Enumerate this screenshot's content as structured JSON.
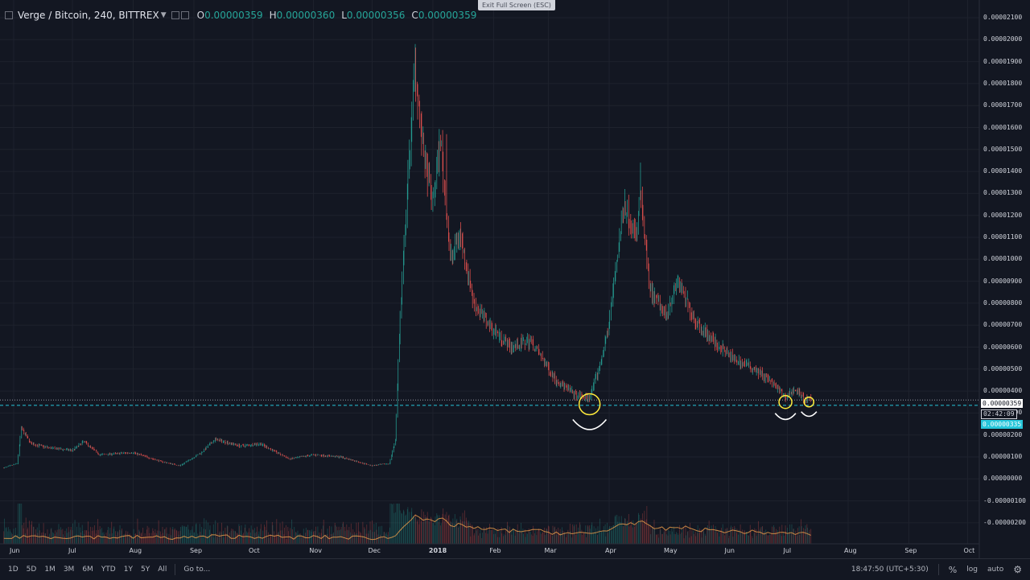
{
  "header": {
    "symbol": "Verge / Bitcoin, 240, BITTREX",
    "open_key": "O",
    "open": "0.00000359",
    "high_key": "H",
    "high": "0.00000360",
    "low_key": "L",
    "low": "0.00000356",
    "close_key": "C",
    "close": "0.00000359"
  },
  "exit_fullscreen_label": "Exit Full Screen (ESC)",
  "price_labels": {
    "last": "0.00000359",
    "countdown": "02:42:09",
    "crosshair": "0.00000335"
  },
  "bottom_toolbar": {
    "ranges": [
      "1D",
      "5D",
      "1M",
      "3M",
      "6M",
      "YTD",
      "1Y",
      "5Y",
      "All"
    ],
    "goto": "Go to...",
    "time": "18:47:50 (UTC+5:30)",
    "percent": "%",
    "log": "log",
    "auto": "auto"
  },
  "colors": {
    "background": "#131722",
    "up": "#26a69a",
    "down": "#ef5350",
    "crosshair": "#26c6da",
    "annotation": "#ffeb3b"
  },
  "chart_data": {
    "type": "candlestick",
    "title": "Verge / Bitcoin, 240, BITTREX",
    "x_tick_labels": [
      "Jun",
      "Jul",
      "Aug",
      "Sep",
      "Oct",
      "Nov",
      "Dec",
      "2018",
      "Feb",
      "Mar",
      "Apr",
      "May",
      "Jun",
      "Jul",
      "Aug",
      "Sep",
      "Oct"
    ],
    "y_tick_labels": [
      "0.00002100",
      "0.00002000",
      "0.00001900",
      "0.00001800",
      "0.00001700",
      "0.00001600",
      "0.00001500",
      "0.00001400",
      "0.00001300",
      "0.00001200",
      "0.00001100",
      "0.00001000",
      "0.00000900",
      "0.00000800",
      "0.00000700",
      "0.00000600",
      "0.00000500",
      "0.00000400",
      "0.00000300",
      "0.00000200",
      "0.00000100",
      "0.00000000",
      "-0.00000100",
      "-0.00000200"
    ],
    "ylim": [
      -2.2e-06,
      2.13e-05
    ],
    "grid": true,
    "price_path": [
      [
        "2017-05-27",
        5e-07
      ],
      [
        "2017-06-03",
        7e-07
      ],
      [
        "2017-06-05",
        2.3e-06
      ],
      [
        "2017-06-10",
        1.6e-06
      ],
      [
        "2017-06-20",
        1.4e-06
      ],
      [
        "2017-07-01",
        1.3e-06
      ],
      [
        "2017-07-07",
        1.7e-06
      ],
      [
        "2017-07-15",
        1.1e-06
      ],
      [
        "2017-08-01",
        1.2e-06
      ],
      [
        "2017-08-15",
        8e-07
      ],
      [
        "2017-08-25",
        6e-07
      ],
      [
        "2017-09-05",
        1.2e-06
      ],
      [
        "2017-09-12",
        1.8e-06
      ],
      [
        "2017-09-25",
        1.5e-06
      ],
      [
        "2017-10-05",
        1.6e-06
      ],
      [
        "2017-10-20",
        9e-07
      ],
      [
        "2017-11-01",
        1.1e-06
      ],
      [
        "2017-11-15",
        1e-06
      ],
      [
        "2017-12-01",
        6e-07
      ],
      [
        "2017-12-10",
        7e-07
      ],
      [
        "2017-12-13",
        1.8e-06
      ],
      [
        "2017-12-15",
        6.5e-06
      ],
      [
        "2017-12-19",
        1.3e-05
      ],
      [
        "2017-12-23",
        1.9e-05
      ],
      [
        "2017-12-27",
        1.5e-05
      ],
      [
        "2018-01-01",
        1.25e-05
      ],
      [
        "2018-01-05",
        1.55e-05
      ],
      [
        "2018-01-10",
        1e-05
      ],
      [
        "2018-01-15",
        1.12e-05
      ],
      [
        "2018-01-22",
        8e-06
      ],
      [
        "2018-02-01",
        6.8e-06
      ],
      [
        "2018-02-10",
        6e-06
      ],
      [
        "2018-02-20",
        6.3e-06
      ],
      [
        "2018-03-05",
        4.5e-06
      ],
      [
        "2018-03-15",
        3.8e-06
      ],
      [
        "2018-03-22",
        3.7e-06
      ],
      [
        "2018-03-27",
        5e-06
      ],
      [
        "2018-04-01",
        7e-06
      ],
      [
        "2018-04-05",
        1e-05
      ],
      [
        "2018-04-09",
        1.25e-05
      ],
      [
        "2018-04-15",
        1.1e-05
      ],
      [
        "2018-04-17",
        1.3e-05
      ],
      [
        "2018-04-22",
        8.5e-06
      ],
      [
        "2018-04-30",
        7.5e-06
      ],
      [
        "2018-05-06",
        9e-06
      ],
      [
        "2018-05-15",
        7.2e-06
      ],
      [
        "2018-05-25",
        6.2e-06
      ],
      [
        "2018-06-03",
        5.5e-06
      ],
      [
        "2018-06-15",
        5e-06
      ],
      [
        "2018-06-24",
        4.3e-06
      ],
      [
        "2018-06-30",
        3.7e-06
      ],
      [
        "2018-07-05",
        4.1e-06
      ],
      [
        "2018-07-10",
        3.6e-06
      ],
      [
        "2018-07-13",
        3.6e-06
      ]
    ],
    "notable_highs": [
      [
        "2017-12-23",
        1.98e-05
      ],
      [
        "2018-01-08",
        1.57e-05
      ],
      [
        "2018-04-09",
        1.32e-05
      ],
      [
        "2018-04-17",
        1.44e-05
      ],
      [
        "2018-05-06",
        9.3e-06
      ]
    ],
    "last_price": 3.59e-06,
    "crosshair_price": 3.35e-06,
    "annotations": [
      "circle-2018-03-22",
      "circle-2018-06-30",
      "circle-2018-07-12"
    ]
  }
}
